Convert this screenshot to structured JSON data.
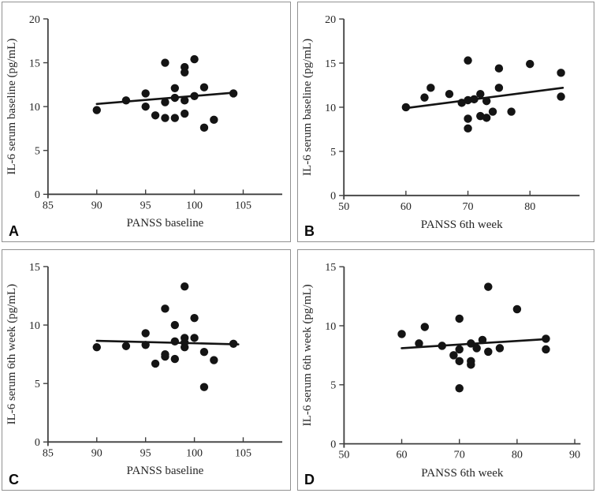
{
  "figure": {
    "style": {
      "point_color": "#141414",
      "trend_color": "#141414",
      "axis_color": "#3f3f3f",
      "text_color": "#262626",
      "border_color": "#919191",
      "background": "#ffffff"
    }
  },
  "chart_data": [
    {
      "type": "scatter",
      "panel_label": "A",
      "title": "",
      "xlabel": "PANSS baseline",
      "ylabel": "IL-6 serum baseline (pg/mL)",
      "xlim": [
        85,
        109
      ],
      "ylim": [
        0,
        20
      ],
      "xticks": [
        85,
        90,
        95,
        100,
        105
      ],
      "yticks": [
        0,
        5,
        10,
        15,
        20
      ],
      "grid": false,
      "legend": "none",
      "points": [
        [
          90,
          9.6
        ],
        [
          93,
          10.7
        ],
        [
          95,
          11.5
        ],
        [
          95,
          10.0
        ],
        [
          96,
          9.0
        ],
        [
          97,
          15.0
        ],
        [
          97,
          10.5
        ],
        [
          97,
          8.7
        ],
        [
          98,
          12.1
        ],
        [
          98,
          11.0
        ],
        [
          98,
          8.7
        ],
        [
          99,
          14.5
        ],
        [
          99,
          13.9
        ],
        [
          99,
          10.7
        ],
        [
          99,
          9.2
        ],
        [
          100,
          15.4
        ],
        [
          100,
          11.2
        ],
        [
          101,
          12.2
        ],
        [
          101,
          7.6
        ],
        [
          102,
          8.5
        ],
        [
          104,
          11.5
        ]
      ],
      "trendline": {
        "x": [
          90,
          104.2
        ],
        "y": [
          10.3,
          11.6
        ]
      }
    },
    {
      "type": "scatter",
      "panel_label": "B",
      "title": "",
      "xlabel": "PANSS 6th week",
      "ylabel": "IL-6 serum baseline (pg/mL)",
      "xlim": [
        50,
        88
      ],
      "ylim": [
        0,
        20
      ],
      "xticks": [
        50,
        60,
        70,
        80
      ],
      "yticks": [
        0,
        5,
        10,
        15,
        20
      ],
      "grid": false,
      "legend": "none",
      "points": [
        [
          60,
          10.0
        ],
        [
          63,
          11.1
        ],
        [
          64,
          12.2
        ],
        [
          67,
          11.5
        ],
        [
          69,
          10.5
        ],
        [
          70,
          15.3
        ],
        [
          70,
          10.8
        ],
        [
          71,
          10.9
        ],
        [
          70,
          8.7
        ],
        [
          70,
          7.6
        ],
        [
          72,
          11.5
        ],
        [
          72,
          9.0
        ],
        [
          73,
          8.8
        ],
        [
          73,
          10.7
        ],
        [
          74,
          9.5
        ],
        [
          75,
          14.4
        ],
        [
          75,
          12.2
        ],
        [
          77,
          9.5
        ],
        [
          80,
          14.9
        ],
        [
          85,
          13.9
        ],
        [
          85,
          11.2
        ]
      ],
      "trendline": {
        "x": [
          60,
          85.3
        ],
        "y": [
          9.9,
          12.2
        ]
      }
    },
    {
      "type": "scatter",
      "panel_label": "C",
      "title": "",
      "xlabel": "PANSS baseline",
      "ylabel": "IL-6 serum 6th week (pg/mL)",
      "xlim": [
        85,
        109
      ],
      "ylim": [
        0,
        15
      ],
      "xticks": [
        85,
        90,
        95,
        100,
        105
      ],
      "yticks": [
        0,
        5,
        10,
        15
      ],
      "grid": false,
      "legend": "none",
      "points": [
        [
          90,
          8.1
        ],
        [
          93,
          8.2
        ],
        [
          95,
          9.3
        ],
        [
          95,
          8.3
        ],
        [
          96,
          6.7
        ],
        [
          97,
          11.4
        ],
        [
          97,
          7.5
        ],
        [
          97,
          7.3
        ],
        [
          98,
          10.0
        ],
        [
          98,
          8.6
        ],
        [
          98,
          7.1
        ],
        [
          99,
          13.3
        ],
        [
          99,
          8.9
        ],
        [
          99,
          8.5
        ],
        [
          99,
          8.1
        ],
        [
          100,
          10.6
        ],
        [
          100,
          8.9
        ],
        [
          101,
          7.7
        ],
        [
          101,
          4.7
        ],
        [
          102,
          7.0
        ],
        [
          104,
          8.4
        ]
      ],
      "trendline": {
        "x": [
          90,
          104.5
        ],
        "y": [
          8.65,
          8.35
        ]
      }
    },
    {
      "type": "scatter",
      "panel_label": "D",
      "title": "",
      "xlabel": "PANSS 6th week",
      "ylabel": "IL-6 serum 6th week (pg/mL)",
      "xlim": [
        50,
        91
      ],
      "ylim": [
        0,
        15
      ],
      "xticks": [
        50,
        60,
        70,
        80,
        90
      ],
      "yticks": [
        0,
        5,
        10,
        15
      ],
      "grid": false,
      "legend": "none",
      "points": [
        [
          60,
          9.3
        ],
        [
          63,
          8.5
        ],
        [
          64,
          9.9
        ],
        [
          67,
          8.3
        ],
        [
          69,
          7.5
        ],
        [
          70,
          10.6
        ],
        [
          70,
          8.0
        ],
        [
          70,
          7.0
        ],
        [
          70,
          4.7
        ],
        [
          72,
          8.5
        ],
        [
          72,
          7.0
        ],
        [
          72,
          6.7
        ],
        [
          73,
          8.1
        ],
        [
          74,
          8.8
        ],
        [
          75,
          7.8
        ],
        [
          77,
          8.1
        ],
        [
          75,
          13.3
        ],
        [
          80,
          11.4
        ],
        [
          85,
          8.9
        ],
        [
          85,
          8.0
        ]
      ],
      "trendline": {
        "x": [
          60,
          84.5
        ],
        "y": [
          8.1,
          8.85
        ]
      }
    }
  ]
}
